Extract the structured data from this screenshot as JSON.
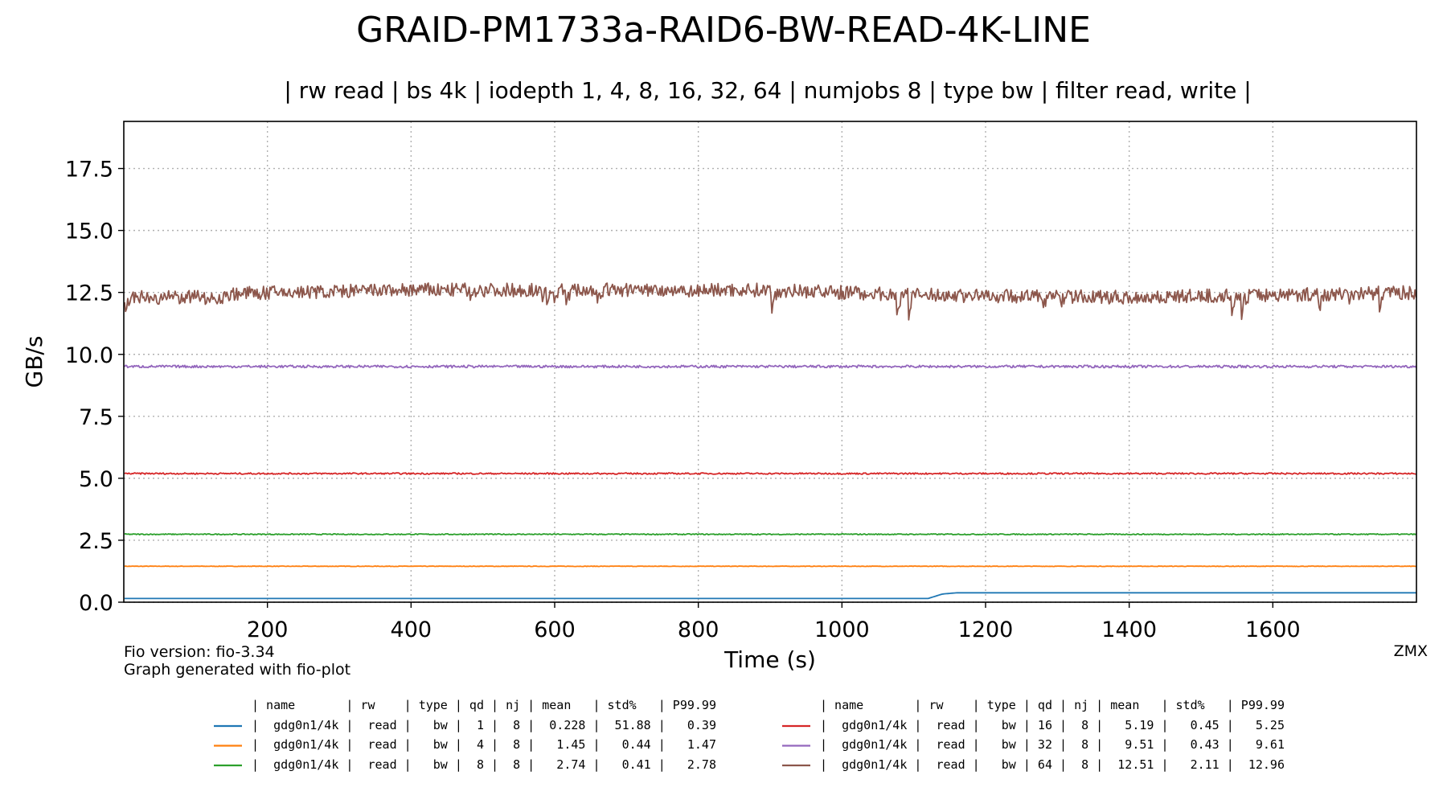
{
  "chart_data": {
    "type": "line",
    "title": "GRAID-PM1733a-RAID6-BW-READ-4K-LINE",
    "subtitle": "| rw read | bs 4k | iodepth 1, 4, 8, 16, 32, 64 | numjobs 8 | type bw | filter read, write |",
    "xlabel": "Time (s)",
    "ylabel": "GB/s",
    "xlim": [
      0,
      1800
    ],
    "ylim": [
      0,
      19.4
    ],
    "xticks": [
      200,
      400,
      600,
      800,
      1000,
      1200,
      1400,
      1600
    ],
    "yticks": [
      0.0,
      2.5,
      5.0,
      7.5,
      10.0,
      12.5,
      15.0,
      17.5
    ],
    "grid": true,
    "series": [
      {
        "name": "gdg0n1/4k",
        "rw": "read",
        "type": "bw",
        "qd": 1,
        "nj": 8,
        "mean": 0.228,
        "std": 51.88,
        "p9999": 0.39,
        "color": "#1f77b4",
        "x": [
          1,
          1120,
          1140,
          1160,
          1800
        ],
        "y": [
          0.15,
          0.15,
          0.33,
          0.38,
          0.38
        ],
        "noise": 0.0
      },
      {
        "name": "gdg0n1/4k",
        "rw": "read",
        "type": "bw",
        "qd": 4,
        "nj": 8,
        "mean": 1.45,
        "std": 0.44,
        "p9999": 1.47,
        "color": "#ff7f0e",
        "x": [
          1,
          1800
        ],
        "y": [
          1.45,
          1.45
        ],
        "noise": 0.01
      },
      {
        "name": "gdg0n1/4k",
        "rw": "read",
        "type": "bw",
        "qd": 8,
        "nj": 8,
        "mean": 2.74,
        "std": 0.41,
        "p9999": 2.78,
        "color": "#2ca02c",
        "x": [
          1,
          1800
        ],
        "y": [
          2.74,
          2.74
        ],
        "noise": 0.02
      },
      {
        "name": "gdg0n1/4k",
        "rw": "read",
        "type": "bw",
        "qd": 16,
        "nj": 8,
        "mean": 5.19,
        "std": 0.45,
        "p9999": 5.25,
        "color": "#d62728",
        "x": [
          1,
          1800
        ],
        "y": [
          5.19,
          5.19
        ],
        "noise": 0.03
      },
      {
        "name": "gdg0n1/4k",
        "rw": "read",
        "type": "bw",
        "qd": 32,
        "nj": 8,
        "mean": 9.51,
        "std": 0.43,
        "p9999": 9.61,
        "color": "#9467bd",
        "x": [
          1,
          1800
        ],
        "y": [
          9.51,
          9.51
        ],
        "noise": 0.05
      },
      {
        "name": "gdg0n1/4k",
        "rw": "read",
        "type": "bw",
        "qd": 64,
        "nj": 8,
        "mean": 12.51,
        "std": 2.11,
        "p9999": 12.96,
        "color": "#8c564b",
        "x": [
          1,
          140,
          150,
          400,
          900,
          1100,
          1400,
          1800
        ],
        "y": [
          12.3,
          12.3,
          12.45,
          12.6,
          12.6,
          12.4,
          12.3,
          12.5
        ],
        "noise": 0.28
      }
    ]
  },
  "footer": {
    "fio_version": "Fio version: fio-3.34",
    "generated": "Graph generated with fio-plot",
    "watermark": "ZMX"
  },
  "table": {
    "header": "| name       | rw    | type | qd | nj | mean   | std%   | P99.99",
    "rows_left": [
      "|  gdg0n1/4k |  read |   bw |  1 |  8 |  0.228 |  51.88 |   0.39",
      "|  gdg0n1/4k |  read |   bw |  4 |  8 |   1.45 |   0.44 |   1.47",
      "|  gdg0n1/4k |  read |   bw |  8 |  8 |   2.74 |   0.41 |   2.78"
    ],
    "rows_right": [
      "|  gdg0n1/4k |  read |   bw | 16 |  8 |   5.19 |   0.45 |   5.25",
      "|  gdg0n1/4k |  read |   bw | 32 |  8 |   9.51 |   0.43 |   9.61",
      "|  gdg0n1/4k |  read |   bw | 64 |  8 |  12.51 |   2.11 |  12.96"
    ]
  }
}
